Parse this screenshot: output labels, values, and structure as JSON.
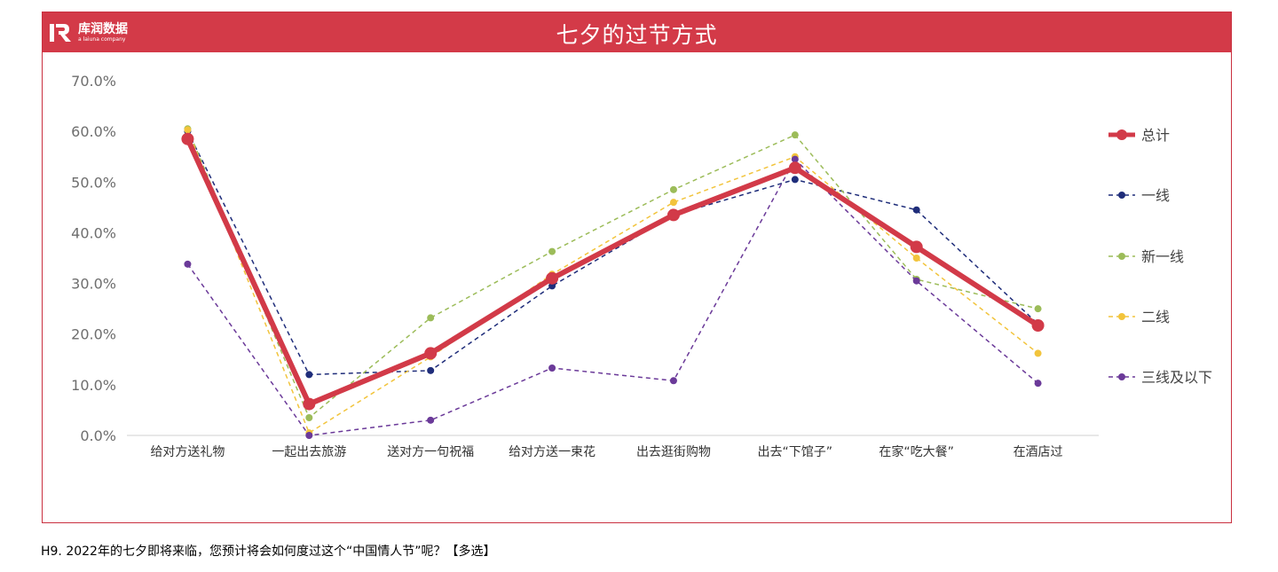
{
  "header": {
    "logo_name": "库润数据",
    "logo_sub": "a laiuna company",
    "title": "七夕的过节方式"
  },
  "footnote": "H9. 2022年的七夕即将来临，您预计将会如何度过这个“中国情人节”呢？【多选】",
  "colors": {
    "banner": "#d33a48",
    "total": "#d23a48",
    "tier1": "#1f2d7a",
    "new_tier1": "#9cbc59",
    "tier2": "#f2c43c",
    "tier3_below": "#6b3a99"
  },
  "chart_data": {
    "type": "line",
    "title": "七夕的过节方式",
    "xlabel": "",
    "ylabel": "",
    "ylim": [
      0,
      70
    ],
    "y_ticks": [
      "0.0%",
      "10.0%",
      "20.0%",
      "30.0%",
      "40.0%",
      "50.0%",
      "60.0%",
      "70.0%"
    ],
    "grid": false,
    "legend_position": "right",
    "categories": [
      "给对方送礼物",
      "一起出去旅游",
      "送对方一句祝福",
      "给对方送一束花",
      "出去逛街购物",
      "出去“下馆子”",
      "在家“吃大餐”",
      "在酒店过"
    ],
    "series": [
      {
        "name": "一线",
        "color": "#1f2d7a",
        "style": "dashed",
        "values": [
          60.0,
          12.0,
          12.8,
          29.5,
          43.5,
          50.5,
          44.5,
          22.0
        ]
      },
      {
        "name": "新一线",
        "color": "#9cbc59",
        "style": "dashed",
        "values": [
          60.5,
          3.5,
          23.2,
          36.3,
          48.5,
          59.3,
          30.8,
          25.0
        ]
      },
      {
        "name": "二线",
        "color": "#f2c43c",
        "style": "dashed",
        "values": [
          60.3,
          0.5,
          15.5,
          31.8,
          46.0,
          55.0,
          35.0,
          16.2
        ]
      },
      {
        "name": "三线及以下",
        "color": "#6b3a99",
        "style": "dashed",
        "values": [
          33.8,
          0.0,
          3.0,
          13.3,
          10.8,
          54.5,
          30.5,
          10.3
        ]
      },
      {
        "name": "总计",
        "color": "#d23a48",
        "style": "solid",
        "values": [
          58.5,
          6.2,
          16.2,
          31.0,
          43.5,
          52.8,
          37.2,
          21.7
        ]
      }
    ],
    "legend_order": [
      "总计",
      "一线",
      "新一线",
      "二线",
      "三线及以下"
    ]
  }
}
